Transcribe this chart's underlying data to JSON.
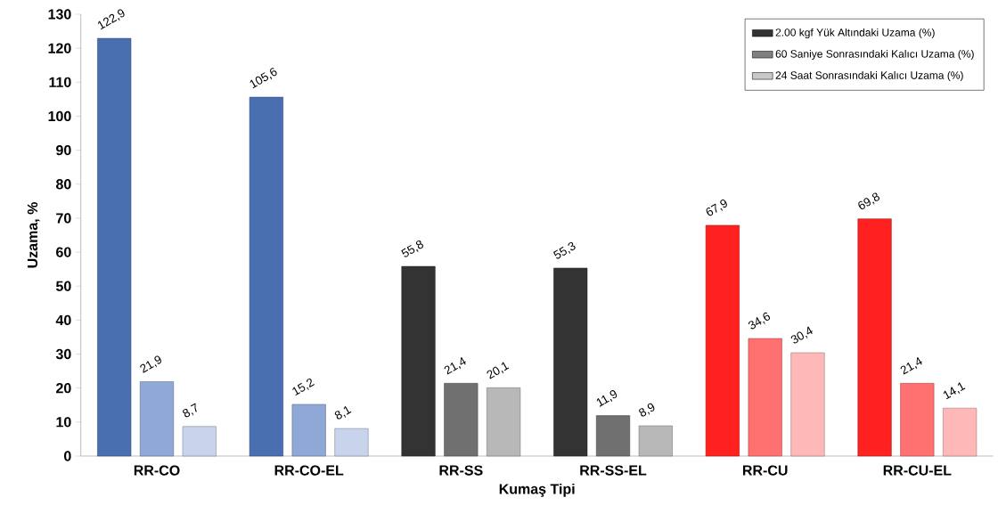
{
  "chart_data": {
    "type": "bar",
    "xlabel": "Kumaş Tipi",
    "ylabel": "Uzama, %",
    "categories": [
      "RR-CO",
      "RR-CO-EL",
      "RR-SS",
      "RR-SS-EL",
      "RR-CU",
      "RR-CU-EL"
    ],
    "ylim": [
      0,
      130
    ],
    "yticks": [
      0,
      10,
      20,
      30,
      40,
      50,
      60,
      70,
      80,
      90,
      100,
      110,
      120,
      130
    ],
    "legend": "top right",
    "series": [
      {
        "name": "2.00 kgf Yük Altındaki Uzama (%)",
        "color": "#333333",
        "colors": [
          "#4a6fb0",
          "#4a6fb0",
          "#333333",
          "#333333",
          "#ff2020",
          "#ff2020"
        ],
        "values": [
          122.9,
          105.6,
          55.8,
          55.3,
          67.9,
          69.8
        ],
        "value_labels": [
          "122,9",
          "105,6",
          "55,8",
          "55,3",
          "67,9",
          "69,8"
        ]
      },
      {
        "name": "60 Saniye Sonrasındaki Kalıcı Uzama (%)",
        "color": "#808080",
        "colors": [
          "#8fa8d6",
          "#8fa8d6",
          "#707070",
          "#707070",
          "#ff7070",
          "#ff7070"
        ],
        "values": [
          21.9,
          15.2,
          21.4,
          11.9,
          34.6,
          21.4
        ],
        "value_labels": [
          "21,9",
          "15,2",
          "21,4",
          "11,9",
          "34,6",
          "21,4"
        ]
      },
      {
        "name": "24 Saat Sonrasındaki Kalıcı Uzama (%)",
        "color": "#c8c8c8",
        "colors": [
          "#c8d4ec",
          "#c8d4ec",
          "#b8b8b8",
          "#b8b8b8",
          "#ffb8b8",
          "#ffb8b8"
        ],
        "values": [
          8.7,
          8.1,
          20.1,
          8.9,
          30.4,
          14.1
        ],
        "value_labels": [
          "8,7",
          "8,1",
          "20,1",
          "8,9",
          "30,4",
          "14,1"
        ]
      }
    ]
  }
}
